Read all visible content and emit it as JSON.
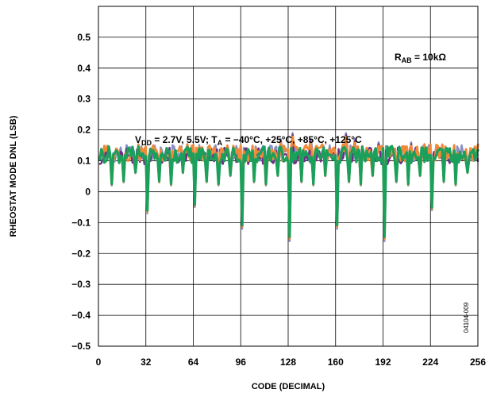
{
  "chart_data": {
    "type": "line",
    "xlabel": "CODE (DECIMAL)",
    "ylabel": "RHEOSTAT MODE DNL (LSB)",
    "xlim": [
      0,
      256
    ],
    "ylim": [
      -0.5,
      0.6
    ],
    "x_ticks": [
      "0",
      "32",
      "64",
      "96",
      "128",
      "160",
      "192",
      "224",
      "256"
    ],
    "y_ticks": [
      "0.5",
      "0.4",
      "0.3",
      "0.2",
      "0.1",
      "0",
      "−0.1",
      "−0.2",
      "−0.3",
      "−0.4",
      "−0.5"
    ],
    "grid": true,
    "annotations": {
      "rab": {
        "prefix": "R",
        "sub": "AB",
        "suffix": " = 10kΩ"
      },
      "conditions": {
        "p1": "V",
        "sub1": "DD",
        "p2": " = 2.7V, 5.5V; T",
        "sub2": "A",
        "p3": " = −40°C, +25°C, +85°C, +125°C"
      }
    },
    "figure_id": "04104-009",
    "baseline": 0.12,
    "dips": [
      {
        "code": 8,
        "value": 0.02
      },
      {
        "code": 16,
        "value": 0.03
      },
      {
        "code": 24,
        "value": 0.06
      },
      {
        "code": 32,
        "value": -0.07
      },
      {
        "code": 40,
        "value": 0.03
      },
      {
        "code": 48,
        "value": 0.02
      },
      {
        "code": 56,
        "value": 0.06
      },
      {
        "code": 64,
        "value": -0.05
      },
      {
        "code": 72,
        "value": 0.03
      },
      {
        "code": 80,
        "value": 0.02
      },
      {
        "code": 88,
        "value": 0.05
      },
      {
        "code": 96,
        "value": -0.12
      },
      {
        "code": 104,
        "value": 0.03
      },
      {
        "code": 112,
        "value": 0.02
      },
      {
        "code": 120,
        "value": 0.05
      },
      {
        "code": 128,
        "value": -0.16
      },
      {
        "code": 136,
        "value": 0.03
      },
      {
        "code": 144,
        "value": 0.02
      },
      {
        "code": 152,
        "value": 0.05
      },
      {
        "code": 160,
        "value": -0.12
      },
      {
        "code": 168,
        "value": 0.03
      },
      {
        "code": 176,
        "value": 0.02
      },
      {
        "code": 184,
        "value": 0.05
      },
      {
        "code": 192,
        "value": -0.16
      },
      {
        "code": 200,
        "value": 0.03
      },
      {
        "code": 208,
        "value": 0.02
      },
      {
        "code": 216,
        "value": 0.05
      },
      {
        "code": 224,
        "value": -0.06
      },
      {
        "code": 232,
        "value": 0.03
      },
      {
        "code": 240,
        "value": 0.02
      },
      {
        "code": 248,
        "value": 0.06
      }
    ],
    "spikes": [
      {
        "code": 112,
        "value": 0.16
      },
      {
        "code": 122,
        "value": 0.17
      },
      {
        "code": 130,
        "value": 0.19
      },
      {
        "code": 142,
        "value": 0.17
      },
      {
        "code": 166,
        "value": 0.19
      },
      {
        "code": 172,
        "value": 0.17
      },
      {
        "code": 188,
        "value": 0.16
      },
      {
        "code": 200,
        "value": 0.16
      },
      {
        "code": 210,
        "value": 0.16
      }
    ],
    "series": [
      {
        "color": "#8a8fc4",
        "width": 2.5,
        "offset": 0.004,
        "depth": 1.0
      },
      {
        "color": "#6b2f86",
        "width": 2.5,
        "offset": -0.004,
        "depth": 0.92
      },
      {
        "color": "#f08a3a",
        "width": 3.0,
        "offset": 0.006,
        "depth": 0.97
      },
      {
        "color": "#1aa05a",
        "width": 3.2,
        "offset": 0.0,
        "depth": 0.95
      }
    ]
  }
}
